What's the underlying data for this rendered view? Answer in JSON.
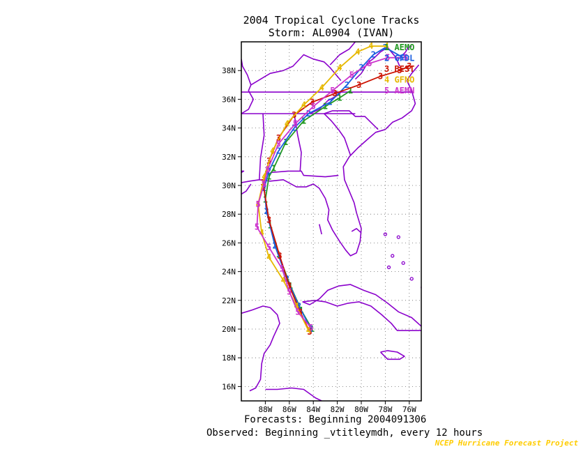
{
  "title_line1": "2004 Tropical Cyclone Tracks",
  "title_line2": "Storm: AL0904 (IVAN)",
  "footer_line1": "Forecasts: Beginning 2004091306",
  "footer_line2": "Observed: Beginning _vtitleymdh, every 12 hours",
  "credit": "NCEP Hurricane Forecast Project",
  "colors": {
    "border": "#8a00cc",
    "grid": "#666666",
    "frame": "#000000"
  },
  "chart_data": {
    "type": "map",
    "lon_range": [
      -90,
      -75
    ],
    "lat_range": [
      15,
      40
    ],
    "lat_ticks": [
      "16N",
      "18N",
      "20N",
      "22N",
      "24N",
      "26N",
      "28N",
      "30N",
      "32N",
      "34N",
      "36N",
      "38N"
    ],
    "lon_ticks": [
      "88W",
      "86W",
      "84W",
      "82W",
      "80W",
      "78W",
      "76W"
    ],
    "grid": true,
    "legend": [
      {
        "label": "1 AEMO",
        "color": "#229922"
      },
      {
        "label": "2 GFDL",
        "color": "#1a5fe0"
      },
      {
        "label": "3 BEST",
        "color": "#cc1100"
      },
      {
        "label": "4 GFNO",
        "color": "#e6b800"
      },
      {
        "label": "5 AEMN",
        "color": "#cc33cc"
      }
    ],
    "series": [
      {
        "name": "AEMO",
        "marker": "1",
        "color": "#229922",
        "points": [
          [
            -84.1,
            20.0
          ],
          [
            -85.0,
            21.3
          ],
          [
            -85.9,
            23.0
          ],
          [
            -86.9,
            25.2
          ],
          [
            -87.6,
            27.2
          ],
          [
            -88.0,
            29.0
          ],
          [
            -87.7,
            30.6
          ],
          [
            -87.3,
            31.2
          ],
          [
            -86.3,
            33.0
          ],
          [
            -84.8,
            34.5
          ],
          [
            -83.0,
            35.5
          ],
          [
            -81.8,
            36.1
          ],
          [
            -80.9,
            36.6
          ]
        ]
      },
      {
        "name": "GFDL",
        "marker": "2",
        "color": "#1a5fe0",
        "points": [
          [
            -84.2,
            20.0
          ],
          [
            -85.2,
            21.6
          ],
          [
            -86.2,
            23.5
          ],
          [
            -87.2,
            25.8
          ],
          [
            -87.9,
            28.2
          ],
          [
            -88.1,
            29.8
          ],
          [
            -87.7,
            31.0
          ],
          [
            -86.9,
            32.4
          ],
          [
            -85.6,
            34.0
          ],
          [
            -84.4,
            35.0
          ],
          [
            -82.6,
            35.8
          ],
          [
            -81.2,
            37.0
          ],
          [
            -80.0,
            38.2
          ],
          [
            -79.0,
            39.1
          ],
          [
            -78.0,
            39.6
          ],
          [
            -76.5,
            38.9
          ]
        ]
      },
      {
        "name": "BEST",
        "marker": "3",
        "color": "#cc1100",
        "points": [
          [
            -84.3,
            19.8
          ],
          [
            -85.1,
            21.2
          ],
          [
            -86.0,
            23.0
          ],
          [
            -86.8,
            25.1
          ],
          [
            -87.7,
            27.6
          ],
          [
            -88.2,
            30.2
          ],
          [
            -87.7,
            31.7
          ],
          [
            -86.9,
            33.3
          ],
          [
            -85.6,
            34.9
          ],
          [
            -84.1,
            35.8
          ],
          [
            -82.2,
            36.4
          ],
          [
            -80.2,
            37.0
          ],
          [
            -78.4,
            37.6
          ],
          [
            -76.8,
            38.0
          ],
          [
            -76.0,
            38.3
          ]
        ]
      },
      {
        "name": "GFNO",
        "marker": "4",
        "color": "#e6b800",
        "points": [
          [
            -84.4,
            19.9
          ],
          [
            -85.4,
            21.6
          ],
          [
            -86.5,
            23.4
          ],
          [
            -87.7,
            25.0
          ],
          [
            -88.3,
            26.7
          ],
          [
            -88.6,
            28.7
          ],
          [
            -88.1,
            30.6
          ],
          [
            -87.4,
            32.4
          ],
          [
            -86.2,
            34.3
          ],
          [
            -84.8,
            35.6
          ],
          [
            -83.3,
            36.8
          ],
          [
            -81.8,
            38.2
          ],
          [
            -80.3,
            39.3
          ],
          [
            -79.2,
            39.7
          ],
          [
            -77.9,
            39.7
          ]
        ]
      },
      {
        "name": "AEMN",
        "marker": "5",
        "color": "#cc33cc",
        "points": [
          [
            -84.2,
            20.1
          ],
          [
            -85.3,
            21.2
          ],
          [
            -86.0,
            22.6
          ],
          [
            -86.6,
            24.2
          ],
          [
            -87.7,
            25.7
          ],
          [
            -88.7,
            27.1
          ],
          [
            -88.6,
            28.7
          ],
          [
            -88.1,
            30.1
          ],
          [
            -87.8,
            31.1
          ],
          [
            -86.9,
            32.9
          ],
          [
            -85.5,
            34.3
          ],
          [
            -84.0,
            35.5
          ],
          [
            -82.4,
            36.6
          ],
          [
            -80.8,
            37.7
          ],
          [
            -79.3,
            38.5
          ],
          [
            -77.8,
            38.9
          ],
          [
            -76.3,
            38.9
          ]
        ]
      }
    ]
  }
}
